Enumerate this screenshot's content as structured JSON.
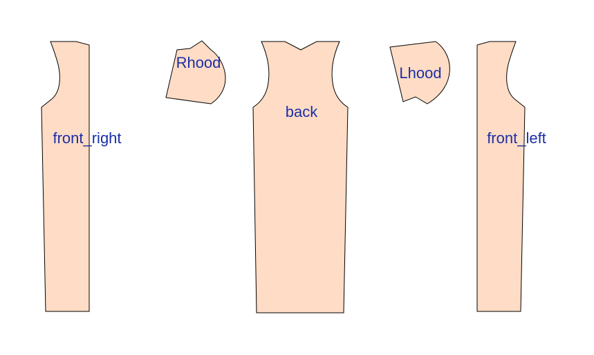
{
  "colors": {
    "fabric_fill": "#FFDCC5",
    "outline": "#000000",
    "label_color": "#1B2FA6"
  },
  "pieces": [
    {
      "id": "front-right",
      "label": "front_right"
    },
    {
      "id": "rhood",
      "label": "Rhood"
    },
    {
      "id": "back",
      "label": "back"
    },
    {
      "id": "lhood",
      "label": "Lhood"
    },
    {
      "id": "front-left",
      "label": "front_left"
    }
  ]
}
